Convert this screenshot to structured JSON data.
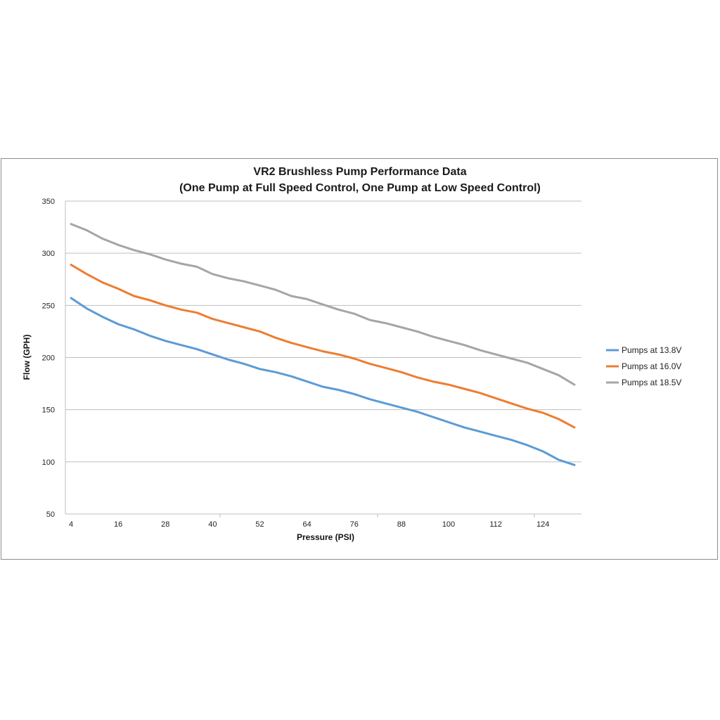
{
  "chart_data": {
    "type": "line",
    "title": "VR2 Brushless Pump Performance Data",
    "subtitle": "(One Pump at Full Speed Control, One Pump at Low Speed Control)",
    "xlabel": "Pressure (PSI)",
    "ylabel": "Flow (GPH)",
    "ylim": [
      50,
      350
    ],
    "yticks": [
      50,
      100,
      150,
      200,
      250,
      300,
      350
    ],
    "xlim": [
      4,
      132
    ],
    "xticks": [
      4,
      16,
      28,
      40,
      52,
      64,
      76,
      88,
      100,
      112,
      124
    ],
    "grid": "horizontal",
    "legend_position": "right",
    "x": [
      4,
      8,
      12,
      16,
      20,
      24,
      28,
      32,
      36,
      40,
      44,
      48,
      52,
      56,
      60,
      64,
      68,
      72,
      76,
      80,
      84,
      88,
      92,
      96,
      100,
      104,
      108,
      112,
      116,
      120,
      124,
      128,
      132
    ],
    "series": [
      {
        "name": "Pumps at 13.8V",
        "color": "#5b9bd5",
        "values": [
          257,
          247,
          239,
          232,
          227,
          221,
          216,
          212,
          208,
          203,
          198,
          194,
          189,
          186,
          182,
          177,
          172,
          169,
          165,
          160,
          156,
          152,
          148,
          143,
          138,
          133,
          129,
          125,
          121,
          116,
          110,
          102,
          97
        ]
      },
      {
        "name": "Pumps at 16.0V",
        "color": "#ed7d31",
        "values": [
          289,
          280,
          272,
          266,
          259,
          255,
          250,
          246,
          243,
          237,
          233,
          229,
          225,
          219,
          214,
          210,
          206,
          203,
          199,
          194,
          190,
          186,
          181,
          177,
          174,
          170,
          166,
          161,
          156,
          151,
          147,
          141,
          133
        ]
      },
      {
        "name": "Pumps at 18.5V",
        "color": "#a5a5a5",
        "values": [
          328,
          322,
          314,
          308,
          303,
          299,
          294,
          290,
          287,
          280,
          276,
          273,
          269,
          265,
          259,
          256,
          251,
          246,
          242,
          236,
          233,
          229,
          225,
          220,
          216,
          212,
          207,
          203,
          199,
          195,
          189,
          183,
          174
        ]
      }
    ]
  }
}
